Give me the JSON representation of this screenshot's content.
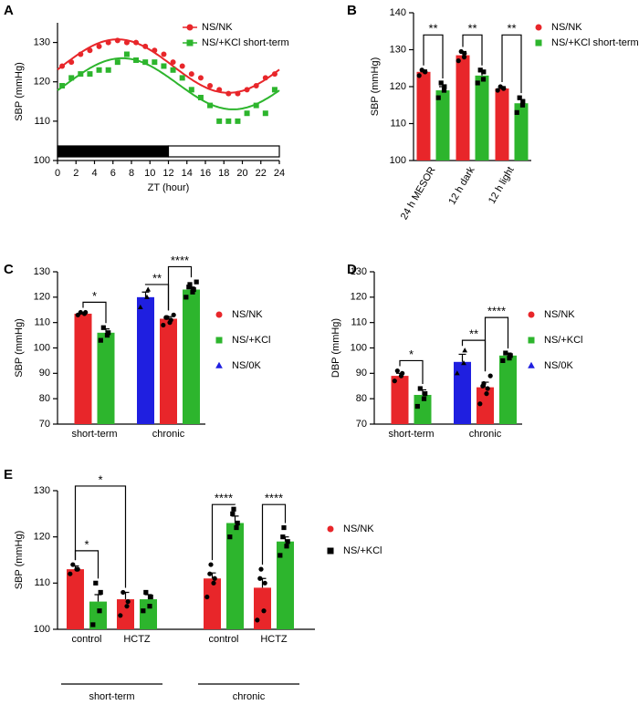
{
  "chart_data": [
    {
      "type": "scatter",
      "panel": "A",
      "y_label": "SBP (mmHg)",
      "x_label": "ZT (hour)",
      "xlim": [
        0,
        24
      ],
      "xticks": [
        0,
        2,
        4,
        6,
        8,
        10,
        12,
        14,
        16,
        18,
        20,
        22,
        24
      ],
      "ylim": [
        100,
        135
      ],
      "yticks": [
        100,
        110,
        120,
        130
      ],
      "legend": "upper right",
      "x": [
        0.5,
        1.5,
        2.5,
        3.5,
        4.5,
        5.5,
        6.5,
        7.5,
        8.5,
        9.5,
        10.5,
        11.5,
        12.5,
        13.5,
        14.5,
        15.5,
        16.5,
        17.5,
        18.5,
        19.5,
        20.5,
        21.5,
        22.5,
        23.5
      ],
      "series": [
        {
          "name": "NS/NK",
          "color": "#e8262a",
          "marker": "circle",
          "values": [
            124,
            125,
            127,
            128,
            129,
            130,
            130.5,
            130,
            130,
            129,
            128,
            127,
            125,
            124,
            122,
            121,
            119,
            118,
            117,
            117,
            118,
            119,
            121,
            122
          ],
          "fit": {
            "mesor": 124,
            "amplitude": 6.8,
            "acrophase": 6.5
          }
        },
        {
          "name": "NS/+KCl short-term",
          "color": "#2db52d",
          "marker": "square",
          "values": [
            119,
            121,
            122,
            122,
            123,
            123,
            125,
            127,
            125.5,
            125,
            125,
            124,
            123,
            121,
            118,
            116,
            114,
            110,
            110,
            110,
            112,
            114,
            112,
            118
          ],
          "fit": {
            "mesor": 119.5,
            "amplitude": 6.5,
            "acrophase": 7
          }
        }
      ],
      "light_dark_bar": [
        {
          "start": 0,
          "end": 12,
          "color": "#000000"
        },
        {
          "start": 12,
          "end": 24,
          "color": "#ffffff"
        }
      ]
    },
    {
      "type": "bar",
      "panel": "B",
      "y_label": "SBP (mmHg)",
      "categories": [
        "24 h MESOR",
        "12 h dark",
        "12 h light"
      ],
      "ylim": [
        100,
        140
      ],
      "yticks": [
        100,
        110,
        120,
        130,
        140
      ],
      "legend": "upper right",
      "series": [
        {
          "name": "NS/NK",
          "color": "#e8262a",
          "marker": "circle",
          "values": [
            124,
            128.5,
            119.5
          ],
          "errors": [
            0.5,
            1,
            0.5
          ],
          "points": [
            [
              123,
              124,
              124,
              124.5
            ],
            [
              127,
              128,
              129,
              129.5
            ],
            [
              119,
              119.5,
              119.5,
              120
            ]
          ]
        },
        {
          "name": "NS/+KCl short-term",
          "color": "#2db52d",
          "marker": "square",
          "values": [
            119,
            123,
            115.5
          ],
          "errors": [
            1,
            1,
            1
          ],
          "points": [
            [
              117,
              119,
              120,
              121
            ],
            [
              121,
              122,
              124,
              124.5
            ],
            [
              113,
              115,
              116,
              117
            ]
          ]
        }
      ],
      "annotations": [
        {
          "label": "**",
          "from": [
            0,
            0
          ],
          "to": [
            1,
            0
          ],
          "y": 134
        },
        {
          "label": "**",
          "from": [
            0,
            1
          ],
          "to": [
            1,
            1
          ],
          "y": 134
        },
        {
          "label": "**",
          "from": [
            0,
            2
          ],
          "to": [
            1,
            2
          ],
          "y": 134
        }
      ]
    },
    {
      "type": "bar",
      "panel": "C",
      "y_label": "SBP (mmHg)",
      "categories": [
        "short-term",
        "chronic"
      ],
      "ylim": [
        70,
        130
      ],
      "yticks": [
        70,
        80,
        90,
        100,
        110,
        120,
        130
      ],
      "legend": "right",
      "bar_order": [
        "NS/0K",
        "NS/NK",
        "NS/+KCl"
      ],
      "series": [
        {
          "name": "NS/NK",
          "color": "#e8262a",
          "marker": "circle",
          "values": [
            113.5,
            111.5
          ],
          "errors": [
            0.3,
            0.8
          ],
          "points": [
            [
              113,
              113.5,
              114,
              114
            ],
            [
              109,
              110,
              111,
              112,
              112,
              113
            ]
          ]
        },
        {
          "name": "NS/+KCl",
          "color": "#2db52d",
          "marker": "square",
          "values": [
            106,
            123
          ],
          "errors": [
            1.5,
            1
          ],
          "points": [
            [
              103,
              105,
              106,
              108
            ],
            [
              120,
              122,
              123,
              124,
              125,
              126
            ]
          ]
        },
        {
          "name": "NS/0K",
          "color": "#1f1fe0",
          "marker": "triangle",
          "values": [
            null,
            120
          ],
          "errors": [
            null,
            2
          ],
          "points": [
            null,
            [
              116,
              120,
              123
            ]
          ]
        }
      ],
      "annotations": [
        {
          "label": "*",
          "from": [
            0,
            0
          ],
          "to": [
            1,
            0
          ],
          "y": 118
        },
        {
          "label": "**",
          "from": [
            2,
            1
          ],
          "to": [
            0,
            1
          ],
          "y": 125
        },
        {
          "label": "****",
          "from": [
            0,
            1
          ],
          "to": [
            1,
            1
          ],
          "y": 132
        }
      ]
    },
    {
      "type": "bar",
      "panel": "D",
      "y_label": "DBP (mmHg)",
      "categories": [
        "short-term",
        "chronic"
      ],
      "ylim": [
        70,
        130
      ],
      "yticks": [
        70,
        80,
        90,
        100,
        110,
        120,
        130
      ],
      "legend": "right",
      "bar_order": [
        "NS/0K",
        "NS/NK",
        "NS/+KCl"
      ],
      "series": [
        {
          "name": "NS/NK",
          "color": "#e8262a",
          "marker": "circle",
          "values": [
            89,
            84.5
          ],
          "errors": [
            1,
            2
          ],
          "points": [
            [
              87,
              89,
              90,
              91
            ],
            [
              78,
              82,
              84,
              85,
              86,
              89
            ]
          ]
        },
        {
          "name": "NS/+KCl",
          "color": "#2db52d",
          "marker": "square",
          "values": [
            81.5,
            97
          ],
          "errors": [
            2,
            1
          ],
          "points": [
            [
              77,
              80,
              82,
              84
            ],
            [
              95,
              96,
              97,
              98
            ]
          ]
        },
        {
          "name": "NS/0K",
          "color": "#1f1fe0",
          "marker": "triangle",
          "values": [
            null,
            94.5
          ],
          "errors": [
            null,
            3
          ],
          "points": [
            null,
            [
              90,
              94,
              99
            ]
          ]
        }
      ],
      "annotations": [
        {
          "label": "*",
          "from": [
            0,
            0
          ],
          "to": [
            1,
            0
          ],
          "y": 95
        },
        {
          "label": "**",
          "from": [
            2,
            1
          ],
          "to": [
            0,
            1
          ],
          "y": 103
        },
        {
          "label": "****",
          "from": [
            0,
            1
          ],
          "to": [
            1,
            1
          ],
          "y": 112
        }
      ]
    },
    {
      "type": "bar",
      "panel": "E",
      "y_label": "SBP (mmHg)",
      "categories": [
        "control",
        "HCTZ",
        "control",
        "HCTZ"
      ],
      "groups": [
        {
          "label": "short-term",
          "categories": [
            0,
            1
          ]
        },
        {
          "label": "chronic",
          "categories": [
            2,
            3
          ]
        }
      ],
      "ylim": [
        100,
        130
      ],
      "yticks": [
        100,
        110,
        120,
        130
      ],
      "legend": "right",
      "series": [
        {
          "name": "NS/NK",
          "color": "#e8262a",
          "marker": "circle",
          "values": [
            113,
            106.5,
            111,
            109
          ],
          "errors": [
            0.7,
            1.5,
            1.2,
            2
          ],
          "points": [
            [
              112,
              113,
              113,
              114
            ],
            [
              103,
              105,
              106,
              108
            ],
            [
              107,
              110,
              111,
              112,
              114
            ],
            [
              102,
              104,
              110,
              111,
              113
            ]
          ]
        },
        {
          "name": "NS/+KCl",
          "color": "#2db52d",
          "marker": "square",
          "marker_color": "#000000",
          "values": [
            106,
            106.5,
            123,
            119
          ],
          "errors": [
            1.5,
            1,
            1.5,
            1
          ],
          "points": [
            [
              101,
              104,
              108,
              110
            ],
            [
              104,
              105,
              107,
              108
            ],
            [
              120,
              122,
              123,
              125,
              126
            ],
            [
              116,
              118,
              119,
              120,
              122
            ]
          ]
        }
      ],
      "annotations": [
        {
          "label": "*",
          "from": [
            0,
            0
          ],
          "to": [
            1,
            0
          ],
          "y": 117
        },
        {
          "label": "*",
          "from": [
            0,
            0
          ],
          "to": [
            0,
            1
          ],
          "y": 131
        },
        {
          "label": "****",
          "from": [
            0,
            2
          ],
          "to": [
            1,
            2
          ],
          "y": 127
        },
        {
          "label": "****",
          "from": [
            0,
            3
          ],
          "to": [
            1,
            3
          ],
          "y": 127
        }
      ]
    }
  ]
}
